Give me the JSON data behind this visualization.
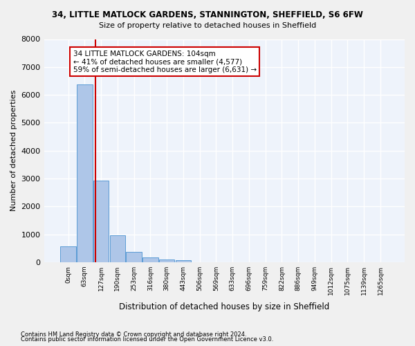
{
  "title1": "34, LITTLE MATLOCK GARDENS, STANNINGTON, SHEFFIELD, S6 6FW",
  "title2": "Size of property relative to detached houses in Sheffield",
  "xlabel": "Distribution of detached houses by size in Sheffield",
  "ylabel": "Number of detached properties",
  "footnote1": "Contains HM Land Registry data © Crown copyright and database right 2024.",
  "footnote2": "Contains public sector information licensed under the Open Government Licence v3.0.",
  "annotation_title": "34 LITTLE MATLOCK GARDENS: 104sqm",
  "annotation_line1": "← 41% of detached houses are smaller (4,577)",
  "annotation_line2": "59% of semi-detached houses are larger (6,631) →",
  "bar_values": [
    560,
    6370,
    2920,
    970,
    360,
    175,
    105,
    65,
    0,
    0,
    0,
    0,
    0,
    0,
    0,
    0,
    0,
    0,
    0,
    0
  ],
  "bin_labels": [
    "0sqm",
    "63sqm",
    "127sqm",
    "190sqm",
    "253sqm",
    "316sqm",
    "380sqm",
    "443sqm",
    "506sqm",
    "569sqm",
    "633sqm",
    "696sqm",
    "759sqm",
    "822sqm",
    "886sqm",
    "949sqm",
    "1012sqm",
    "1075sqm",
    "1139sqm",
    "1265sqm"
  ],
  "bar_color": "#aec6e8",
  "bar_edge_color": "#5b9bd5",
  "bg_color": "#eef3fb",
  "grid_color": "#ffffff",
  "vline_x": 1.65,
  "annotation_box_color": "#cc0000",
  "ylim": [
    0,
    8000
  ],
  "yticks": [
    0,
    1000,
    2000,
    3000,
    4000,
    5000,
    6000,
    7000,
    8000
  ]
}
